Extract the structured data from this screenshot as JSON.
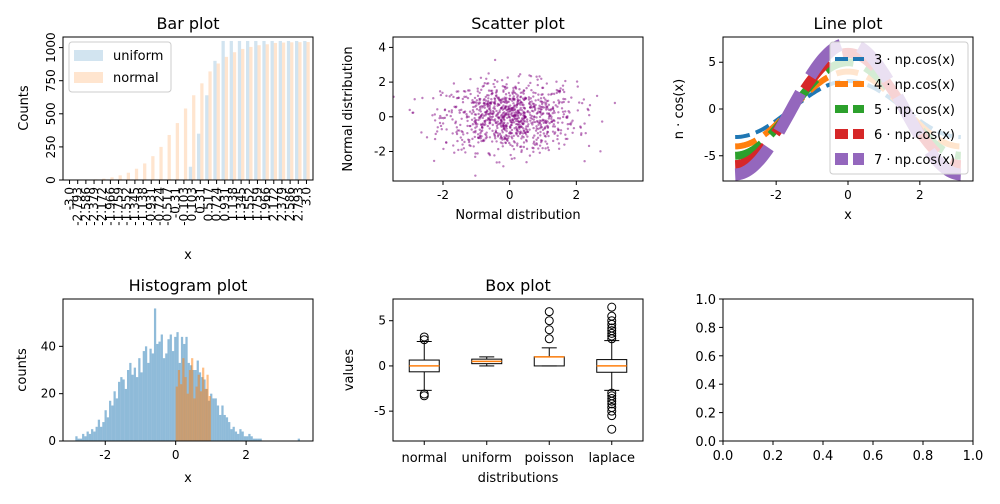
{
  "chart_data": [
    {
      "type": "bar",
      "title": "Bar plot",
      "xlabel": "x",
      "ylabel": "Counts",
      "ylim": [
        0,
        1080
      ],
      "yticks": [
        0,
        250,
        500,
        750,
        1000
      ],
      "legend_position": "top-left",
      "colors": {
        "uniform": "#1f77b4",
        "normal": "#ff7f0e"
      },
      "categories": [
        "-3.0",
        "-2.793",
        "-2.586",
        "-2.379",
        "-2.172",
        "-1.966",
        "-1.759",
        "-1.552",
        "-1.345",
        "-1.138",
        "-0.931",
        "-0.724",
        "-0.517",
        "-0.31",
        "-0.103",
        "0.103",
        "0.31",
        "0.517",
        "0.724",
        "0.931",
        "1.138",
        "1.345",
        "1.552",
        "1.759",
        "1.966",
        "2.172",
        "2.379",
        "2.586",
        "2.793",
        "3.0"
      ],
      "series": [
        {
          "name": "uniform",
          "values": [
            0,
            0,
            0,
            0,
            0,
            0,
            0,
            0,
            0,
            0,
            0,
            0,
            0,
            0,
            0,
            100,
            350,
            640,
            900,
            1050,
            1050,
            1050,
            1050,
            1050,
            1050,
            1050,
            1050,
            1050,
            1050,
            1050
          ]
        },
        {
          "name": "normal",
          "values": [
            0,
            0,
            2,
            5,
            10,
            20,
            35,
            55,
            85,
            125,
            180,
            250,
            340,
            430,
            540,
            640,
            730,
            820,
            880,
            930,
            965,
            990,
            1005,
            1018,
            1025,
            1035,
            1038,
            1040,
            1041,
            1042
          ]
        }
      ]
    },
    {
      "type": "scatter",
      "title": "Scatter plot",
      "xlabel": "Normal distribution",
      "ylabel": "Normal distribution",
      "xlim": [
        -3.5,
        4.0
      ],
      "ylim": [
        -3.7,
        4.6
      ],
      "xticks": [
        -2,
        0,
        2
      ],
      "yticks": [
        -2,
        0,
        2,
        4
      ],
      "color": "#800080",
      "point_count": 1000
    },
    {
      "type": "line",
      "title": "Line plot",
      "xlabel": "x",
      "ylabel": "n · cos(x)",
      "xlim": [
        -3.48,
        3.48
      ],
      "ylim": [
        -7.7,
        7.7
      ],
      "xticks": [
        -2,
        0,
        2
      ],
      "yticks": [
        -5,
        0,
        5
      ],
      "legend_position": "right",
      "series": [
        {
          "name": "3 · np.cos(x)",
          "n": 3,
          "color": "#1f77b4",
          "linestyle": "dashed",
          "linewidth": 4
        },
        {
          "name": "4 · np.cos(x)",
          "n": 4,
          "color": "#ff7f0e",
          "linestyle": "dashed",
          "linewidth": 6
        },
        {
          "name": "5 · np.cos(x)",
          "n": 5,
          "color": "#2ca02c",
          "linestyle": "dashed",
          "linewidth": 8
        },
        {
          "name": "6 · np.cos(x)",
          "n": 6,
          "color": "#d62728",
          "linestyle": "dashed",
          "linewidth": 10
        },
        {
          "name": "7 · np.cos(x)",
          "n": 7,
          "color": "#9467bd",
          "linestyle": "dashed",
          "linewidth": 12
        }
      ]
    },
    {
      "type": "bar",
      "title": "Histogram plot",
      "xlabel": "x",
      "ylabel": "counts",
      "xlim": [
        -3.2,
        3.9
      ],
      "ylim": [
        0,
        60
      ],
      "xticks": [
        -2,
        0,
        2
      ],
      "yticks": [
        0,
        20,
        40
      ],
      "series": [
        {
          "name": "normal",
          "color": "#1f77b4",
          "bin_start": -2.85,
          "bin_width": 0.0638,
          "values": [
            2,
            1,
            1,
            3,
            2,
            4,
            3,
            5,
            4,
            6,
            9,
            6,
            8,
            13,
            10,
            17,
            15,
            21,
            18,
            25,
            27,
            26,
            22,
            30,
            33,
            28,
            31,
            27,
            35,
            29,
            38,
            40,
            33,
            39,
            37,
            56,
            41,
            42,
            45,
            35,
            37,
            43,
            45,
            38,
            44,
            46,
            33,
            44,
            41,
            44,
            33,
            32,
            30,
            30,
            34,
            29,
            27,
            26,
            22,
            17,
            20,
            18,
            18,
            15,
            11,
            15,
            11,
            10,
            8,
            5,
            6,
            4,
            3,
            5,
            4,
            2,
            2,
            3,
            2,
            1,
            1,
            1,
            1,
            0,
            0,
            0,
            0,
            0,
            0,
            0,
            0,
            0,
            0,
            0,
            0,
            0,
            0,
            0,
            0,
            1
          ]
        },
        {
          "name": "uniform",
          "color": "#ff7f0e",
          "bin_start": 0.0,
          "bin_width": 0.0625,
          "values": [
            23,
            30,
            24,
            35,
            27,
            20,
            30,
            35,
            18,
            23,
            28,
            21,
            31,
            22,
            28,
            19
          ]
        }
      ]
    },
    {
      "type": "box",
      "title": "Box plot",
      "xlabel": "distributions",
      "ylabel": "values",
      "ylim": [
        -8.3,
        7.4
      ],
      "yticks": [
        -5,
        0,
        5
      ],
      "categories": [
        "normal",
        "uniform",
        "poisson",
        "laplace"
      ],
      "boxes": [
        {
          "q1": -0.65,
          "median": 0.0,
          "q3": 0.65,
          "whisker_low": -2.7,
          "whisker_high": 2.7,
          "outliers": [
            3.2,
            2.9,
            -3.1,
            -3.3
          ]
        },
        {
          "q1": 0.25,
          "median": 0.5,
          "q3": 0.75,
          "whisker_low": 0.0,
          "whisker_high": 1.0,
          "outliers": []
        },
        {
          "q1": 0.0,
          "median": 1.0,
          "q3": 1.0,
          "whisker_low": 0.0,
          "whisker_high": 2.0,
          "outliers": [
            3,
            4,
            5,
            6
          ]
        },
        {
          "q1": -0.7,
          "median": 0.0,
          "q3": 0.7,
          "whisker_low": -2.7,
          "whisker_high": 2.8,
          "outliers": [
            3.0,
            3.3,
            3.6,
            3.9,
            4.2,
            4.6,
            5.0,
            5.5,
            6.5,
            -3.0,
            -3.3,
            -3.6,
            -3.9,
            -4.2,
            -4.6,
            -5.0,
            -5.5,
            -7.0
          ]
        }
      ]
    },
    {
      "type": "empty",
      "title": "",
      "xlim": [
        0,
        1
      ],
      "ylim": [
        0,
        1
      ],
      "xticks": [
        "0.0",
        "0.2",
        "0.4",
        "0.6",
        "0.8",
        "1.0"
      ],
      "yticks": [
        "0.0",
        "0.2",
        "0.4",
        "0.6",
        "0.8",
        "1.0"
      ]
    }
  ]
}
